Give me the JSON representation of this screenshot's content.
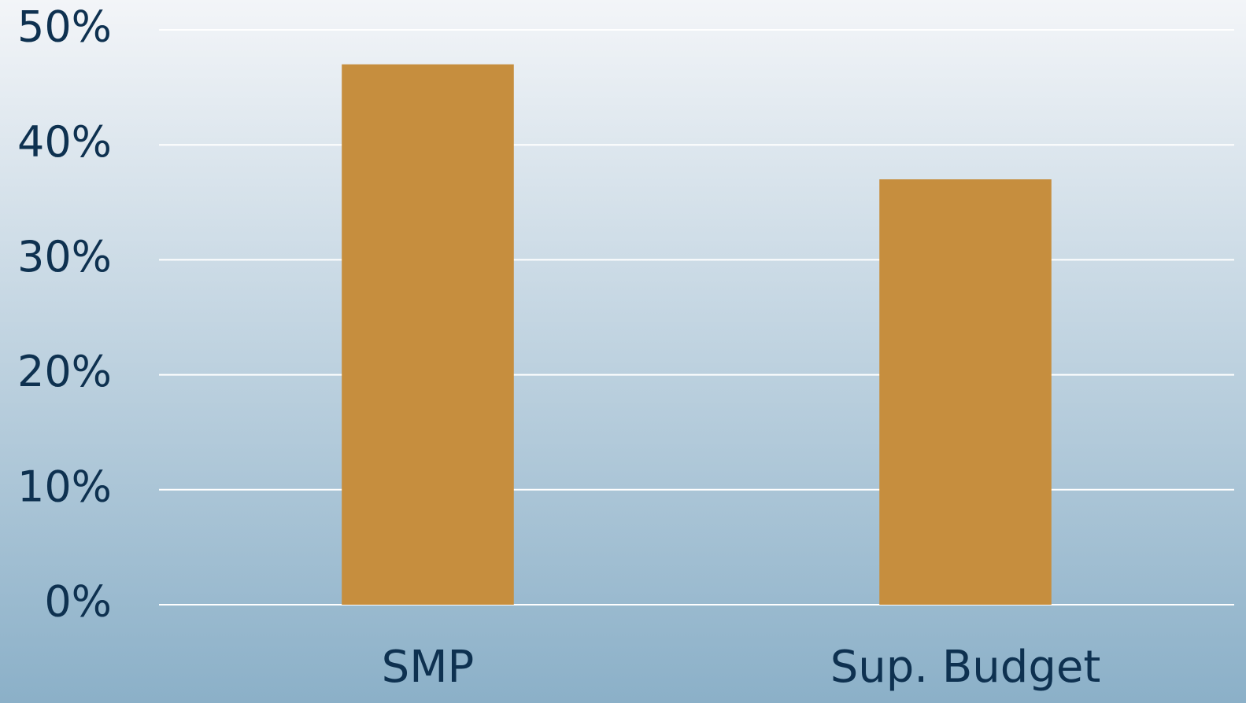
{
  "chart_data": {
    "type": "bar",
    "categories": [
      "SMP",
      "Sup. Budget"
    ],
    "values": [
      47,
      37
    ],
    "color": "#c68e3e",
    "ylim": [
      0,
      50
    ],
    "yticks": [
      {
        "value": 0,
        "label": "0%"
      },
      {
        "value": 10,
        "label": "10%"
      },
      {
        "value": 20,
        "label": "20%"
      },
      {
        "value": 30,
        "label": "30%"
      },
      {
        "value": 40,
        "label": "40%"
      },
      {
        "value": 50,
        "label": "50%"
      }
    ],
    "grid": true
  }
}
